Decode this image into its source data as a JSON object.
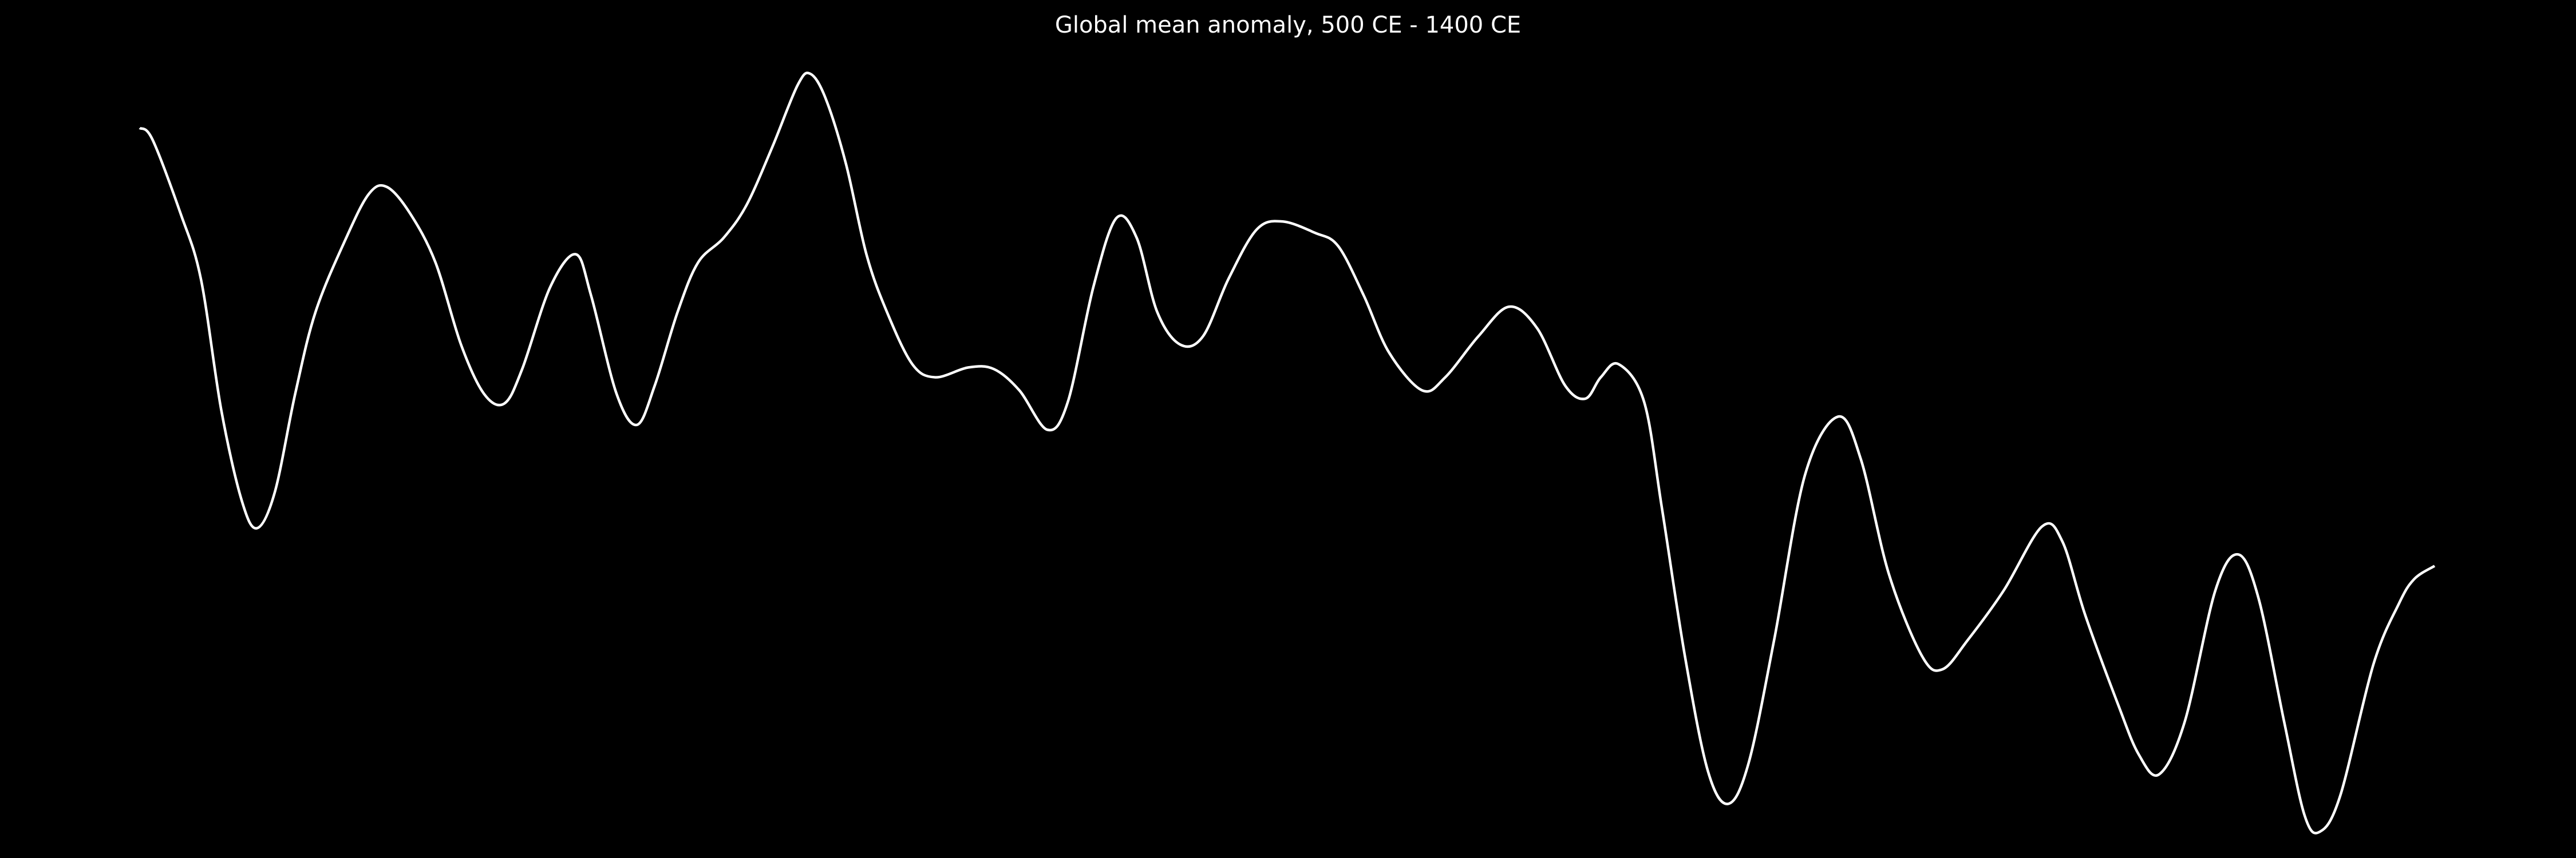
{
  "chart_data": {
    "type": "line",
    "title": "Global mean anomaly, 500 CE - 1400 CE",
    "color": "#ffffff",
    "x": [
      500,
      505,
      516,
      524,
      532,
      540,
      546,
      553,
      561,
      569,
      581,
      590,
      597,
      606,
      616,
      626,
      635,
      643,
      650,
      661,
      671,
      677,
      687,
      695,
      702,
      711,
      719,
      729,
      738,
      748,
      758,
      763,
      769,
      777,
      785,
      793,
      803,
      812,
      825,
      835,
      845,
      856,
      864,
      874,
      883,
      891,
      899,
      908,
      917,
      927,
      938,
      948,
      961,
      970,
      980,
      990,
      1003,
      1012,
      1025,
      1037,
      1048,
      1059,
      1067,
      1073,
      1080,
      1090,
      1097,
      1106,
      1115,
      1123,
      1131,
      1141,
      1153,
      1166,
      1175,
      1186,
      1199,
      1207,
      1217,
      1231,
      1246,
      1254,
      1263,
      1276,
      1284,
      1292,
      1302,
      1314,
      1323,
      1331,
      1341,
      1349,
      1355,
      1363,
      1376,
      1386,
      1392,
      1400
    ],
    "values": [
      2.02,
      1.95,
      1.5,
      1.1,
      0.3,
      -0.25,
      -0.42,
      -0.2,
      0.4,
      0.9,
      1.35,
      1.62,
      1.66,
      1.5,
      1.2,
      0.7,
      0.4,
      0.34,
      0.55,
      1.05,
      1.25,
      1.0,
      0.4,
      0.21,
      0.45,
      0.9,
      1.2,
      1.35,
      1.55,
      1.9,
      2.28,
      2.35,
      2.2,
      1.8,
      1.25,
      0.9,
      0.58,
      0.5,
      0.56,
      0.55,
      0.42,
      0.18,
      0.35,
      1.05,
      1.47,
      1.35,
      0.9,
      0.7,
      0.75,
      1.1,
      1.4,
      1.45,
      1.38,
      1.3,
      1.0,
      0.65,
      0.42,
      0.5,
      0.75,
      0.93,
      0.8,
      0.45,
      0.37,
      0.5,
      0.58,
      0.35,
      -0.3,
      -1.2,
      -1.9,
      -2.1,
      -1.85,
      -1.1,
      -0.1,
      0.26,
      0.0,
      -0.7,
      -1.2,
      -1.28,
      -1.1,
      -0.8,
      -0.41,
      -0.5,
      -0.95,
      -1.5,
      -1.8,
      -1.92,
      -1.6,
      -0.8,
      -0.58,
      -0.85,
      -1.6,
      -2.17,
      -2.27,
      -2.05,
      -1.25,
      -0.88,
      -0.73,
      -0.65
    ],
    "xlim": [
      500,
      1400
    ],
    "ylim": [
      -2.5,
      2.5
    ]
  }
}
